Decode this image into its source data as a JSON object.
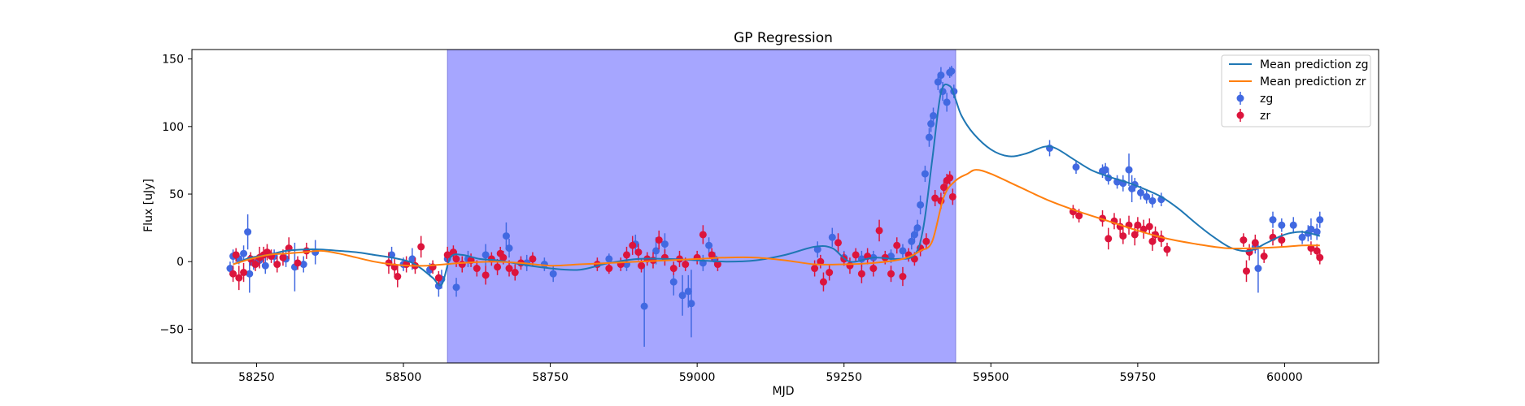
{
  "chart_data": {
    "type": "scatter",
    "title": "GP Regression",
    "xlabel": "MJD",
    "ylabel": "Flux [uJy]",
    "xlim": [
      58140,
      60160
    ],
    "ylim": [
      -75,
      157
    ],
    "xticks": [
      58250,
      58500,
      58750,
      59000,
      59250,
      59500,
      59750,
      60000
    ],
    "yticks": [
      -50,
      0,
      50,
      100,
      150
    ],
    "grid": false,
    "legend_position": "top-right",
    "shaded_region": {
      "x": [
        58575,
        59440
      ],
      "color": "#a6a6ff"
    },
    "legend": [
      {
        "label": "Mean prediction zg",
        "kind": "line",
        "color": "#1f77b4"
      },
      {
        "label": "Mean prediction zr",
        "kind": "line",
        "color": "#ff7f0e"
      },
      {
        "label": "zg",
        "kind": "errorbar",
        "color": "#4169e1"
      },
      {
        "label": "zr",
        "kind": "errorbar",
        "color": "#dc143c"
      }
    ],
    "series": [
      {
        "name": "Mean prediction zg",
        "kind": "line",
        "color": "#1f77b4",
        "x": [
          58210,
          58240,
          58270,
          58300,
          58330,
          58360,
          58390,
          58420,
          58450,
          58480,
          58510,
          58530,
          58550,
          58565,
          58580,
          58600,
          58630,
          58660,
          58700,
          58750,
          58800,
          58850,
          58900,
          58950,
          59000,
          59050,
          59100,
          59150,
          59200,
          59230,
          59260,
          59300,
          59340,
          59370,
          59385,
          59400,
          59415,
          59430,
          59440,
          59450,
          59470,
          59500,
          59530,
          59560,
          59590,
          59610,
          59640,
          59670,
          59700,
          59730,
          59760,
          59790,
          59820,
          59850,
          59880,
          59910,
          59940,
          59970,
          60000,
          60030,
          60060
        ],
        "y": [
          -2,
          3,
          5,
          8,
          9,
          9,
          8,
          7,
          5,
          3,
          0,
          -5,
          -12,
          -17,
          3,
          5,
          2,
          1,
          -2,
          -5,
          -6,
          -1,
          2,
          2,
          1,
          0,
          1,
          5,
          11,
          10,
          0,
          3,
          2,
          5,
          25,
          75,
          125,
          130,
          120,
          108,
          95,
          83,
          78,
          80,
          85,
          84,
          76,
          68,
          63,
          59,
          54,
          48,
          39,
          28,
          18,
          10,
          8,
          14,
          20,
          22,
          19
        ]
      },
      {
        "name": "Mean prediction zr",
        "kind": "line",
        "color": "#ff7f0e",
        "x": [
          58210,
          58240,
          58270,
          58300,
          58330,
          58360,
          58390,
          58420,
          58450,
          58480,
          58510,
          58540,
          58570,
          58600,
          58650,
          58700,
          58750,
          58800,
          58850,
          58900,
          58950,
          59000,
          59050,
          59100,
          59150,
          59200,
          59250,
          59300,
          59350,
          59380,
          59400,
          59420,
          59440,
          59460,
          59475,
          59500,
          59550,
          59600,
          59650,
          59700,
          59750,
          59800,
          59850,
          59900,
          59950,
          60000,
          60030,
          60060
        ],
        "y": [
          -2,
          2,
          5,
          6,
          7,
          8,
          6,
          3,
          0,
          -2,
          -3,
          -3,
          -2,
          -1,
          0,
          -1,
          -3,
          -2,
          -1,
          0,
          1,
          2,
          3,
          3,
          1,
          -2,
          -2,
          -1,
          2,
          8,
          15,
          48,
          60,
          65,
          68,
          65,
          55,
          45,
          37,
          30,
          23,
          17,
          13,
          10,
          10,
          11,
          12,
          12
        ]
      },
      {
        "name": "zg",
        "kind": "errorbar",
        "color": "#4169e1",
        "points": [
          [
            58205,
            -5,
            5
          ],
          [
            58210,
            4,
            5
          ],
          [
            58220,
            2,
            4
          ],
          [
            58228,
            6,
            6
          ],
          [
            58235,
            22,
            13
          ],
          [
            58238,
            -9,
            14
          ],
          [
            58245,
            -1,
            5
          ],
          [
            58255,
            1,
            5
          ],
          [
            58265,
            -3,
            6
          ],
          [
            58280,
            4,
            5
          ],
          [
            58300,
            2,
            6
          ],
          [
            58315,
            -4,
            18
          ],
          [
            58330,
            -2,
            6
          ],
          [
            58350,
            7,
            9
          ],
          [
            58480,
            5,
            6
          ],
          [
            58500,
            -2,
            5
          ],
          [
            58515,
            2,
            8
          ],
          [
            58545,
            -6,
            5
          ],
          [
            58560,
            -18,
            8
          ],
          [
            58565,
            -13,
            7
          ],
          [
            58575,
            2,
            7
          ],
          [
            58590,
            -19,
            7
          ],
          [
            58610,
            2,
            6
          ],
          [
            58640,
            5,
            8
          ],
          [
            58675,
            19,
            10
          ],
          [
            58680,
            10,
            7
          ],
          [
            58710,
            -1,
            6
          ],
          [
            58740,
            -2,
            5
          ],
          [
            58755,
            -9,
            6
          ],
          [
            58850,
            2,
            4
          ],
          [
            58880,
            -2,
            5
          ],
          [
            58895,
            13,
            7
          ],
          [
            58910,
            -33,
            30
          ],
          [
            58930,
            8,
            10
          ],
          [
            58945,
            13,
            8
          ],
          [
            58960,
            -15,
            10
          ],
          [
            58975,
            -25,
            15
          ],
          [
            58985,
            -22,
            12
          ],
          [
            58990,
            -31,
            25
          ],
          [
            59010,
            -1,
            6
          ],
          [
            59020,
            12,
            6
          ],
          [
            59030,
            2,
            5
          ],
          [
            59205,
            9,
            6
          ],
          [
            59230,
            18,
            7
          ],
          [
            59250,
            3,
            5
          ],
          [
            59280,
            2,
            6
          ],
          [
            59300,
            3,
            5
          ],
          [
            59330,
            4,
            5
          ],
          [
            59350,
            8,
            5
          ],
          [
            59365,
            15,
            6
          ],
          [
            59370,
            20,
            5
          ],
          [
            59375,
            25,
            6
          ],
          [
            59380,
            42,
            7
          ],
          [
            59388,
            65,
            6
          ],
          [
            59395,
            92,
            7
          ],
          [
            59398,
            102,
            6
          ],
          [
            59402,
            108,
            6
          ],
          [
            59410,
            133,
            6
          ],
          [
            59415,
            138,
            6
          ],
          [
            59418,
            126,
            7
          ],
          [
            59425,
            118,
            7
          ],
          [
            59430,
            140,
            4
          ],
          [
            59433,
            141,
            4
          ],
          [
            59437,
            126,
            5
          ],
          [
            59600,
            84,
            6
          ],
          [
            59645,
            70,
            5
          ],
          [
            59690,
            67,
            5
          ],
          [
            59695,
            68,
            5
          ],
          [
            59700,
            62,
            5
          ],
          [
            59715,
            59,
            5
          ],
          [
            59725,
            58,
            6
          ],
          [
            59735,
            68,
            12
          ],
          [
            59740,
            54,
            10
          ],
          [
            59745,
            57,
            5
          ],
          [
            59755,
            51,
            5
          ],
          [
            59765,
            48,
            5
          ],
          [
            59775,
            45,
            5
          ],
          [
            59790,
            46,
            5
          ],
          [
            59950,
            11,
            5
          ],
          [
            59955,
            -5,
            18
          ],
          [
            59980,
            31,
            6
          ],
          [
            59995,
            27,
            5
          ],
          [
            60015,
            27,
            6
          ],
          [
            60030,
            18,
            5
          ],
          [
            60040,
            21,
            6
          ],
          [
            60045,
            24,
            8
          ],
          [
            60055,
            22,
            6
          ],
          [
            60060,
            31,
            6
          ]
        ]
      },
      {
        "name": "zr",
        "kind": "errorbar",
        "color": "#dc143c",
        "points": [
          [
            58210,
            -9,
            6
          ],
          [
            58215,
            5,
            5
          ],
          [
            58220,
            -12,
            9
          ],
          [
            58228,
            -8,
            7
          ],
          [
            58240,
            2,
            5
          ],
          [
            58248,
            -2,
            5
          ],
          [
            58255,
            3,
            8
          ],
          [
            58262,
            5,
            6
          ],
          [
            58268,
            7,
            6
          ],
          [
            58275,
            4,
            5
          ],
          [
            58285,
            -2,
            6
          ],
          [
            58295,
            3,
            6
          ],
          [
            58305,
            10,
            8
          ],
          [
            58320,
            -1,
            5
          ],
          [
            58335,
            8,
            6
          ],
          [
            58475,
            -1,
            8
          ],
          [
            58485,
            -4,
            6
          ],
          [
            58490,
            -11,
            8
          ],
          [
            58505,
            -2,
            6
          ],
          [
            58520,
            -3,
            6
          ],
          [
            58530,
            11,
            8
          ],
          [
            58550,
            -4,
            5
          ],
          [
            58560,
            -12,
            5
          ],
          [
            58575,
            5,
            6
          ],
          [
            58585,
            7,
            5
          ],
          [
            58590,
            2,
            6
          ],
          [
            58600,
            -2,
            6
          ],
          [
            58615,
            1,
            5
          ],
          [
            58625,
            -5,
            6
          ],
          [
            58640,
            -10,
            7
          ],
          [
            58650,
            2,
            5
          ],
          [
            58660,
            -4,
            6
          ],
          [
            58665,
            6,
            5
          ],
          [
            58670,
            3,
            5
          ],
          [
            58680,
            -5,
            6
          ],
          [
            58690,
            -8,
            6
          ],
          [
            58700,
            -1,
            5
          ],
          [
            58720,
            2,
            5
          ],
          [
            58830,
            -2,
            5
          ],
          [
            58850,
            -5,
            4
          ],
          [
            58870,
            -2,
            5
          ],
          [
            58880,
            5,
            6
          ],
          [
            58890,
            12,
            7
          ],
          [
            58900,
            7,
            6
          ],
          [
            58905,
            -3,
            5
          ],
          [
            58915,
            2,
            5
          ],
          [
            58925,
            1,
            6
          ],
          [
            58935,
            16,
            7
          ],
          [
            58945,
            3,
            6
          ],
          [
            58960,
            -5,
            5
          ],
          [
            58970,
            2,
            6
          ],
          [
            58980,
            -2,
            5
          ],
          [
            59000,
            3,
            5
          ],
          [
            59010,
            20,
            7
          ],
          [
            59025,
            5,
            5
          ],
          [
            59035,
            -2,
            5
          ],
          [
            59200,
            -5,
            6
          ],
          [
            59210,
            0,
            5
          ],
          [
            59215,
            -15,
            7
          ],
          [
            59225,
            -8,
            6
          ],
          [
            59240,
            14,
            7
          ],
          [
            59250,
            2,
            5
          ],
          [
            59260,
            -3,
            6
          ],
          [
            59270,
            5,
            5
          ],
          [
            59280,
            -9,
            7
          ],
          [
            59290,
            4,
            6
          ],
          [
            59300,
            -5,
            6
          ],
          [
            59310,
            23,
            8
          ],
          [
            59320,
            3,
            5
          ],
          [
            59330,
            -9,
            6
          ],
          [
            59340,
            12,
            6
          ],
          [
            59350,
            -11,
            7
          ],
          [
            59360,
            5,
            5
          ],
          [
            59370,
            2,
            5
          ],
          [
            59380,
            10,
            6
          ],
          [
            59390,
            15,
            6
          ],
          [
            59405,
            47,
            6
          ],
          [
            59415,
            45,
            6
          ],
          [
            59420,
            55,
            5
          ],
          [
            59425,
            60,
            5
          ],
          [
            59430,
            62,
            5
          ],
          [
            59435,
            48,
            6
          ],
          [
            59640,
            37,
            5
          ],
          [
            59650,
            34,
            5
          ],
          [
            59690,
            32,
            6
          ],
          [
            59700,
            17,
            8
          ],
          [
            59710,
            30,
            6
          ],
          [
            59720,
            26,
            6
          ],
          [
            59725,
            19,
            6
          ],
          [
            59735,
            27,
            7
          ],
          [
            59745,
            20,
            8
          ],
          [
            59750,
            27,
            6
          ],
          [
            59760,
            24,
            7
          ],
          [
            59770,
            26,
            6
          ],
          [
            59775,
            15,
            7
          ],
          [
            59780,
            20,
            6
          ],
          [
            59790,
            17,
            6
          ],
          [
            59800,
            9,
            5
          ],
          [
            59930,
            16,
            5
          ],
          [
            59935,
            -7,
            8
          ],
          [
            59940,
            7,
            6
          ],
          [
            59950,
            14,
            6
          ],
          [
            59965,
            4,
            5
          ],
          [
            59980,
            18,
            6
          ],
          [
            59995,
            16,
            5
          ],
          [
            60045,
            10,
            5
          ],
          [
            60055,
            8,
            5
          ],
          [
            60060,
            3,
            5
          ]
        ]
      }
    ]
  }
}
